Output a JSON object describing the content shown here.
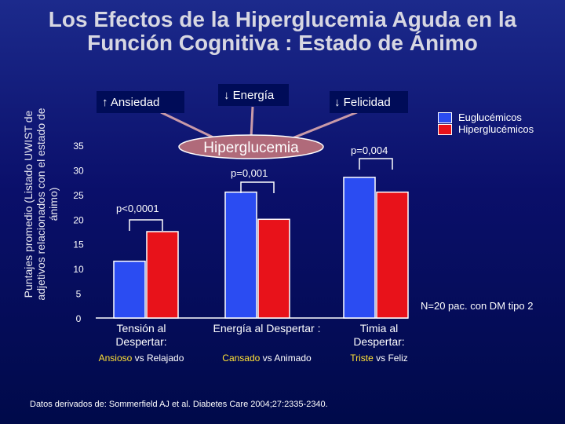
{
  "slide": {
    "title_line1": "Los Efectos de la Hiperglucemia Aguda en la",
    "title_line2": "Función Cognitiva : Estado de Ánimo",
    "ylabel": "Puntajes promedio (Listado UWIST de adjetivos relacionados con el estado de ánimo)",
    "effect_labels": {
      "ansiedad": "↑ Ansiedad",
      "energia": "↓ Energía",
      "felicidad": "↓ Felicidad"
    },
    "center_label": "Hiperglucemia",
    "note": "N=20 pac. con DM tipo 2",
    "source": "Datos derivados de: Sommerfield AJ et al. Diabetes Care 2004;27:2335-2340.",
    "colors": {
      "eu": "#2b4cf2",
      "hyper": "#e8121a",
      "highlight": "#ffe135",
      "center_fill": "#b06a7a"
    }
  },
  "groups": [
    {
      "label": "Tensión al Despertar:",
      "sub_a": "Ansioso",
      "sub_vs": " vs ",
      "sub_b": "Relajado",
      "pvalue": "p<0,0001"
    },
    {
      "label": "Energía al Despertar :",
      "sub_a": "Cansado",
      "sub_vs": " vs ",
      "sub_b": "Animado",
      "pvalue": "p=0,001"
    },
    {
      "label": "Timia al Despertar:",
      "sub_a": "Triste",
      "sub_vs": " vs ",
      "sub_b": "Feliz",
      "pvalue": "p=0,004"
    }
  ],
  "chart_data": {
    "type": "bar",
    "categories": [
      "Tensión al Despertar",
      "Energía al Despertar",
      "Timia al Despertar"
    ],
    "series": [
      {
        "name": "Euglucémicos",
        "values": [
          11.5,
          25.5,
          28.5
        ],
        "color": "#2b4cf2"
      },
      {
        "name": "Hiperglucémicos",
        "values": [
          17.5,
          20,
          25.5
        ],
        "color": "#e8121a"
      }
    ],
    "yticks": [
      0,
      5,
      10,
      15,
      20,
      25,
      30,
      35
    ],
    "ylim": [
      0,
      35
    ],
    "legend": "top-right",
    "grid": false
  }
}
